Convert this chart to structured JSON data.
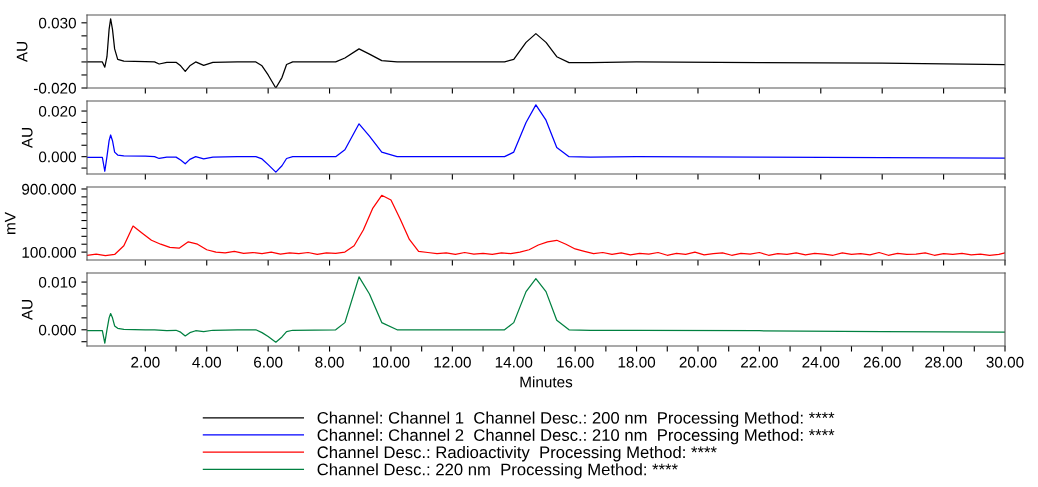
{
  "chart_data": [
    {
      "type": "line",
      "ylabel": "AU",
      "tick_labels": "y",
      "legend": "bottom",
      "xlim": [
        0.1,
        30.0
      ],
      "ylim": [
        -0.02,
        0.036
      ],
      "xticks": [
        2,
        4,
        6,
        8,
        10,
        12,
        14,
        16,
        18,
        20,
        22,
        24,
        26,
        28,
        30
      ],
      "yticks": [
        {
          "value": 0.03,
          "label": "0.030"
        },
        {
          "value": 0.02,
          "label": null
        },
        {
          "value": 0.01,
          "label": null
        },
        {
          "value": 0.0,
          "label": null
        },
        {
          "value": -0.01,
          "label": null
        },
        {
          "value": -0.02,
          "label": "-0.020"
        }
      ],
      "series": [
        {
          "name": "Channel: Channel 1  Channel Desc.: 200 nm  Processing Method: ****",
          "color": "#000000",
          "x": [
            0.1,
            0.6,
            0.68,
            0.75,
            0.82,
            0.87,
            0.93,
            1.0,
            1.1,
            1.3,
            2.0,
            2.3,
            2.45,
            2.7,
            3.0,
            3.15,
            3.3,
            3.45,
            3.64,
            3.9,
            4.2,
            5.0,
            5.6,
            5.8,
            6.0,
            6.25,
            6.45,
            6.6,
            6.8,
            8.2,
            8.5,
            8.96,
            9.3,
            9.7,
            10.2,
            13.7,
            14.0,
            14.4,
            14.72,
            15.05,
            15.4,
            15.8,
            16.5,
            18.0,
            22.0,
            26.0,
            30.0
          ],
          "values": [
            0.0,
            0.0,
            -0.004,
            0.004,
            0.025,
            0.033,
            0.025,
            0.01,
            0.002,
            0.0006,
            0.0002,
            0.0,
            -0.0016,
            -0.0003,
            -0.0003,
            -0.003,
            -0.0073,
            -0.003,
            0.0,
            -0.0026,
            -0.0003,
            0.0,
            0.0,
            -0.003,
            -0.01,
            -0.02,
            -0.012,
            -0.002,
            0.0,
            0.0,
            0.003,
            0.01,
            0.006,
            0.001,
            0.0,
            0.0,
            0.002,
            0.015,
            0.0217,
            0.015,
            0.004,
            -0.0005,
            -0.0005,
            0.0,
            -0.0005,
            -0.001,
            -0.002
          ]
        }
      ]
    },
    {
      "type": "line",
      "ylabel": "AU",
      "tick_labels": "y",
      "legend": "bottom",
      "xlim": [
        0.1,
        30.0
      ],
      "ylim": [
        -0.0076,
        0.0244
      ],
      "xticks": [
        2,
        4,
        6,
        8,
        10,
        12,
        14,
        16,
        18,
        20,
        22,
        24,
        26,
        28,
        30
      ],
      "yticks": [
        {
          "value": 0.02,
          "label": "0.020"
        },
        {
          "value": 0.015,
          "label": null
        },
        {
          "value": 0.01,
          "label": null
        },
        {
          "value": 0.005,
          "label": null
        },
        {
          "value": 0.0,
          "label": "0.000"
        },
        {
          "value": -0.005,
          "label": null
        }
      ],
      "series": [
        {
          "name": "Channel: Channel 2  Channel Desc.: 210 nm  Processing Method: ****",
          "color": "#0000ff",
          "x": [
            0.1,
            0.6,
            0.68,
            0.75,
            0.82,
            0.87,
            0.93,
            1.0,
            1.1,
            1.3,
            2.0,
            2.3,
            2.45,
            2.7,
            3.0,
            3.15,
            3.3,
            3.45,
            3.64,
            3.9,
            4.2,
            5.0,
            5.6,
            5.8,
            6.0,
            6.25,
            6.45,
            6.6,
            6.8,
            8.2,
            8.5,
            8.96,
            9.3,
            9.7,
            10.2,
            13.7,
            14.0,
            14.4,
            14.72,
            15.05,
            15.4,
            15.8,
            16.5,
            18.0,
            22.0,
            26.0,
            30.0
          ],
          "values": [
            -0.0003,
            -0.0003,
            -0.0064,
            0.0,
            0.007,
            0.0095,
            0.007,
            0.002,
            0.0007,
            0.0003,
            0.0002,
            0.0,
            -0.0008,
            -0.0002,
            -0.0002,
            -0.0015,
            -0.0031,
            -0.0012,
            0.0,
            -0.001,
            -0.0002,
            0.0,
            0.0,
            -0.001,
            -0.0035,
            -0.0068,
            -0.004,
            -0.0008,
            0.0,
            0.0,
            0.003,
            0.0144,
            0.009,
            0.002,
            0.0,
            0.0,
            0.002,
            0.015,
            0.0227,
            0.016,
            0.004,
            0.0,
            -0.0002,
            0.0,
            -0.0002,
            -0.0004,
            -0.0006
          ]
        }
      ]
    },
    {
      "type": "line",
      "ylabel": "mV",
      "tick_labels": "y",
      "legend": "bottom",
      "xlim": [
        0.1,
        30.0
      ],
      "ylim": [
        0,
        925
      ],
      "xticks": [
        2,
        4,
        6,
        8,
        10,
        12,
        14,
        16,
        18,
        20,
        22,
        24,
        26,
        28,
        30
      ],
      "yticks": [
        {
          "value": 900,
          "label": "900.000"
        },
        {
          "value": 800,
          "label": null
        },
        {
          "value": 700,
          "label": null
        },
        {
          "value": 600,
          "label": null
        },
        {
          "value": 500,
          "label": null
        },
        {
          "value": 400,
          "label": null
        },
        {
          "value": 300,
          "label": null
        },
        {
          "value": 200,
          "label": null
        },
        {
          "value": 100,
          "label": "100.000"
        }
      ],
      "series": [
        {
          "name": "Channel Desc.: Radioactivity  Processing Method: ****",
          "color": "#ff0000",
          "x": [
            0.1,
            0.4,
            0.7,
            1.0,
            1.3,
            1.6,
            1.9,
            2.2,
            2.5,
            2.8,
            3.1,
            3.4,
            3.7,
            4.0,
            4.3,
            4.6,
            4.9,
            5.2,
            5.5,
            5.8,
            6.1,
            6.4,
            6.7,
            7.0,
            7.3,
            7.6,
            7.9,
            8.2,
            8.5,
            8.8,
            9.1,
            9.4,
            9.7,
            10.0,
            10.3,
            10.6,
            10.9,
            11.2,
            11.5,
            11.8,
            12.1,
            12.4,
            12.7,
            13.0,
            13.3,
            13.6,
            13.9,
            14.2,
            14.5,
            14.8,
            15.1,
            15.4,
            15.7,
            16.0,
            16.3,
            16.6,
            16.9,
            17.2,
            17.5,
            17.8,
            18.1,
            18.4,
            18.7,
            19.0,
            19.3,
            19.6,
            19.9,
            20.2,
            20.5,
            20.8,
            21.1,
            21.4,
            21.7,
            22.0,
            22.3,
            22.6,
            22.9,
            23.2,
            23.5,
            23.8,
            24.1,
            24.4,
            24.7,
            25.0,
            25.3,
            25.6,
            25.9,
            26.2,
            26.5,
            26.8,
            27.1,
            27.4,
            27.7,
            28.0,
            28.3,
            28.6,
            28.9,
            29.2,
            29.5,
            29.8,
            30.0
          ],
          "values": [
            60,
            75,
            55,
            70,
            180,
            430,
            340,
            250,
            200,
            160,
            150,
            230,
            200,
            130,
            100,
            90,
            110,
            85,
            95,
            80,
            100,
            75,
            90,
            80,
            95,
            70,
            90,
            85,
            100,
            180,
            380,
            650,
            820,
            760,
            520,
            260,
            110,
            95,
            80,
            90,
            70,
            95,
            75,
            85,
            70,
            90,
            80,
            100,
            130,
            190,
            230,
            250,
            200,
            140,
            110,
            80,
            95,
            70,
            90,
            65,
            85,
            75,
            95,
            60,
            85,
            70,
            100,
            65,
            80,
            90,
            60,
            85,
            75,
            95,
            60,
            80,
            70,
            90,
            65,
            85,
            75,
            60,
            90,
            70,
            80,
            65,
            95,
            60,
            85,
            70,
            75,
            90,
            60,
            80,
            70,
            85,
            65,
            75,
            60,
            70,
            90
          ]
        }
      ]
    },
    {
      "type": "line",
      "ylabel": "AU",
      "xlabel": "Minutes",
      "legend": "bottom",
      "xlim": [
        0.1,
        30.0
      ],
      "ylim": [
        -0.0034,
        0.0119
      ],
      "xticks": [
        {
          "value": 2,
          "label": "2.00"
        },
        {
          "value": 3,
          "label": null
        },
        {
          "value": 4,
          "label": "4.00"
        },
        {
          "value": 5,
          "label": null
        },
        {
          "value": 6,
          "label": "6.00"
        },
        {
          "value": 7,
          "label": null
        },
        {
          "value": 8,
          "label": "8.00"
        },
        {
          "value": 9,
          "label": null
        },
        {
          "value": 10,
          "label": "10.00"
        },
        {
          "value": 11,
          "label": null
        },
        {
          "value": 12,
          "label": "12.00"
        },
        {
          "value": 13,
          "label": null
        },
        {
          "value": 14,
          "label": "14.00"
        },
        {
          "value": 15,
          "label": null
        },
        {
          "value": 16,
          "label": "16.00"
        },
        {
          "value": 17,
          "label": null
        },
        {
          "value": 18,
          "label": "18.00"
        },
        {
          "value": 19,
          "label": null
        },
        {
          "value": 20,
          "label": "20.00"
        },
        {
          "value": 21,
          "label": null
        },
        {
          "value": 22,
          "label": "22.00"
        },
        {
          "value": 23,
          "label": null
        },
        {
          "value": 24,
          "label": "24.00"
        },
        {
          "value": 25,
          "label": null
        },
        {
          "value": 26,
          "label": "26.00"
        },
        {
          "value": 27,
          "label": null
        },
        {
          "value": 28,
          "label": "28.00"
        },
        {
          "value": 29,
          "label": null
        },
        {
          "value": 30,
          "label": "30.00"
        }
      ],
      "yticks": [
        {
          "value": 0.01,
          "label": "0.010"
        },
        {
          "value": 0.0075,
          "label": null
        },
        {
          "value": 0.005,
          "label": null
        },
        {
          "value": 0.0025,
          "label": null
        },
        {
          "value": 0.0,
          "label": "0.000"
        },
        {
          "value": -0.0025,
          "label": null
        }
      ],
      "series": [
        {
          "name": "Channel Desc.: 220 nm  Processing Method: ****",
          "color": "#008040",
          "x": [
            0.1,
            0.6,
            0.68,
            0.75,
            0.82,
            0.87,
            0.93,
            1.0,
            1.1,
            1.3,
            2.0,
            2.3,
            2.7,
            3.0,
            3.15,
            3.3,
            3.45,
            3.64,
            3.9,
            4.2,
            5.0,
            5.6,
            5.8,
            6.0,
            6.25,
            6.45,
            6.6,
            6.8,
            8.2,
            8.5,
            8.96,
            9.3,
            9.7,
            10.2,
            13.7,
            14.0,
            14.4,
            14.72,
            15.05,
            15.4,
            15.8,
            16.5,
            18.0,
            22.0,
            26.0,
            30.0
          ],
          "values": [
            -0.0002,
            -0.0002,
            -0.0028,
            0.0,
            0.0025,
            0.0034,
            0.0025,
            0.0008,
            0.0003,
            0.0001,
            0.0,
            0.0,
            -0.0002,
            -0.0001,
            -0.0005,
            -0.0013,
            -0.0006,
            -0.0002,
            -0.0004,
            -0.0001,
            0.0,
            0.0,
            -0.0006,
            -0.0014,
            -0.0026,
            -0.0015,
            -0.0004,
            -0.0001,
            0.0,
            0.0015,
            0.0111,
            0.0075,
            0.0015,
            0.0,
            0.0,
            0.0015,
            0.008,
            0.0107,
            0.008,
            0.002,
            0.0,
            -0.0001,
            -0.0001,
            -0.0002,
            -0.0004,
            -0.0005
          ]
        }
      ]
    }
  ]
}
